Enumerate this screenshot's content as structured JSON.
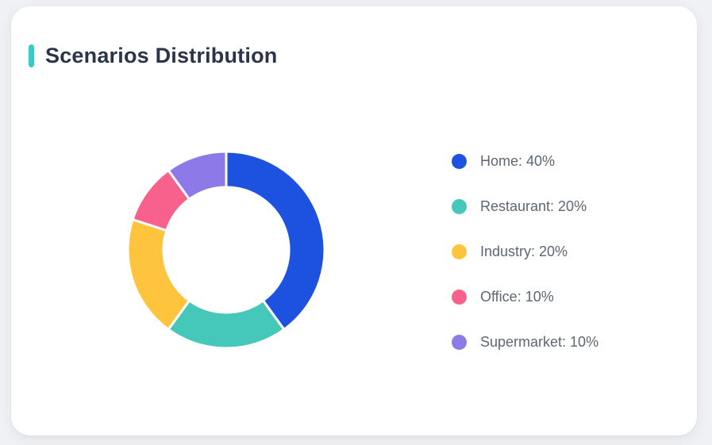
{
  "card": {
    "title": "Scenarios Distribution",
    "accent_color": "#3FC8C3"
  },
  "colors": {
    "page_bg": "#F0F1F4",
    "card_bg": "#FFFFFF",
    "title_text": "#2B3448",
    "legend_text": "#5E6673",
    "slice_border": "#FFFFFF"
  },
  "chart_data": {
    "type": "pie",
    "subtype": "donut",
    "title": "Scenarios Distribution",
    "legend_position": "right",
    "direction": "clockwise",
    "start_angle_deg": 0,
    "outer_radius": 124,
    "inner_radius": 79,
    "slice_gap_width": 3,
    "legend_label_format": "{label}: {value}%",
    "categories": [
      "Home",
      "Restaurant",
      "Industry",
      "Office",
      "Supermarket"
    ],
    "values": [
      40,
      20,
      20,
      10,
      10
    ],
    "segments": [
      {
        "label": "Home",
        "value": 40,
        "unit": "%",
        "color": "#1D52E0"
      },
      {
        "label": "Restaurant",
        "value": 20,
        "unit": "%",
        "color": "#45C7BA"
      },
      {
        "label": "Industry",
        "value": 20,
        "unit": "%",
        "color": "#FEC43D"
      },
      {
        "label": "Office",
        "value": 10,
        "unit": "%",
        "color": "#F9618D"
      },
      {
        "label": "Supermarket",
        "value": 10,
        "unit": "%",
        "color": "#8E79E8"
      }
    ]
  }
}
